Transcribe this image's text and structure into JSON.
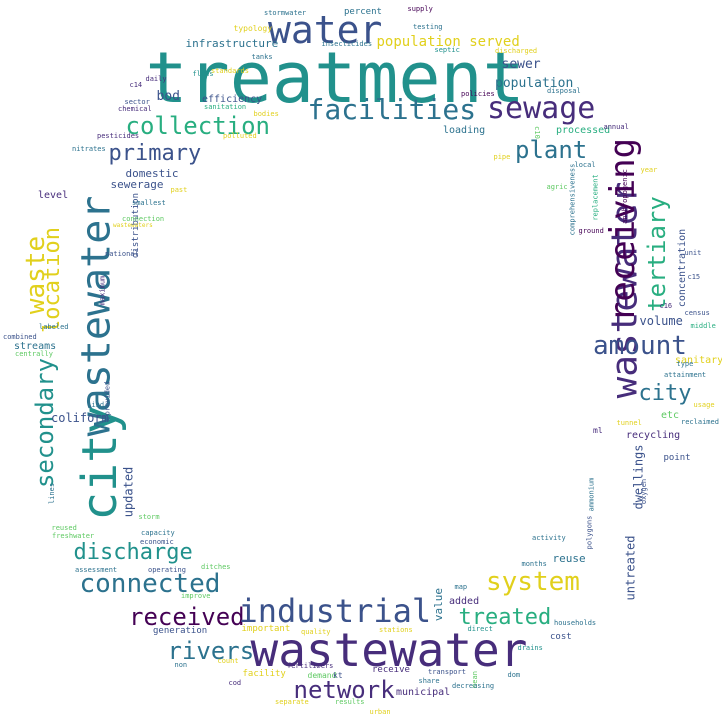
{
  "palette": {
    "purple": "#440154",
    "indigo": "#472d7b",
    "blue": "#3b528b",
    "steel": "#2c728e",
    "teal": "#21918c",
    "green": "#28ae80",
    "lime": "#5ec962",
    "yellowgreen": "#addc30",
    "yellow": "#e1d01c"
  },
  "words": [
    {
      "text": "treatment",
      "color": "teal"
    },
    {
      "text": "water",
      "color": "blue"
    },
    {
      "text": "sewage",
      "color": "indigo"
    },
    {
      "text": "facilities",
      "color": "steel"
    },
    {
      "text": "collection",
      "color": "green"
    },
    {
      "text": "primary",
      "color": "blue"
    },
    {
      "text": "plant",
      "color": "steel"
    },
    {
      "text": "wastewater",
      "color": "indigo"
    },
    {
      "text": "receiving",
      "color": "purple"
    },
    {
      "text": "tertiary",
      "color": "green"
    },
    {
      "text": "amount",
      "color": "blue"
    },
    {
      "text": "city",
      "color": "steel"
    },
    {
      "text": "city",
      "color": "teal"
    },
    {
      "text": "wastewater",
      "color": "steel"
    },
    {
      "text": "waste",
      "color": "yellow"
    },
    {
      "text": "location",
      "color": "yellow"
    },
    {
      "text": "secondary",
      "color": "teal"
    },
    {
      "text": "discharge",
      "color": "teal"
    },
    {
      "text": "connected",
      "color": "steel"
    },
    {
      "text": "system",
      "color": "yellow"
    },
    {
      "text": "received",
      "color": "purple"
    },
    {
      "text": "industrial",
      "color": "blue"
    },
    {
      "text": "treated",
      "color": "green"
    },
    {
      "text": "rivers",
      "color": "steel"
    },
    {
      "text": "wastewater",
      "color": "indigo"
    },
    {
      "text": "network",
      "color": "indigo"
    },
    {
      "text": "population served",
      "color": "yellow"
    },
    {
      "text": "sewer",
      "color": "blue"
    },
    {
      "text": "population",
      "color": "steel"
    },
    {
      "text": "bod",
      "color": "blue"
    },
    {
      "text": "efficiency",
      "color": "blue"
    },
    {
      "text": "infrastructure",
      "color": "steel"
    },
    {
      "text": "domestic",
      "color": "blue"
    },
    {
      "text": "sewerage",
      "color": "blue"
    },
    {
      "text": "level",
      "color": "indigo"
    },
    {
      "text": "volume",
      "color": "blue"
    },
    {
      "text": "coliform",
      "color": "blue"
    },
    {
      "text": "streams",
      "color": "steel"
    },
    {
      "text": "updated",
      "color": "blue"
    },
    {
      "text": "dwellings",
      "color": "blue"
    },
    {
      "text": "untreated",
      "color": "blue"
    },
    {
      "text": "reuse",
      "color": "steel"
    },
    {
      "text": "recycling",
      "color": "indigo"
    },
    {
      "text": "point",
      "color": "blue"
    },
    {
      "text": "concentration",
      "color": "blue"
    },
    {
      "text": "distribution",
      "color": "blue"
    },
    {
      "text": "value",
      "color": "steel"
    },
    {
      "text": "added",
      "color": "indigo"
    },
    {
      "text": "municipal",
      "color": "indigo"
    },
    {
      "text": "receive",
      "color": "indigo"
    },
    {
      "text": "percent",
      "color": "steel"
    },
    {
      "text": "supply",
      "color": "purple"
    },
    {
      "text": "typology",
      "color": "yellow"
    },
    {
      "text": "stormwater",
      "color": "steel"
    },
    {
      "text": "testing",
      "color": "steel"
    },
    {
      "text": "septic",
      "color": "teal"
    },
    {
      "text": "insecticides",
      "color": "steel"
    },
    {
      "text": "discharged",
      "color": "yellow"
    },
    {
      "text": "tanks",
      "color": "steel"
    },
    {
      "text": "policies",
      "color": "purple"
    },
    {
      "text": "disposal",
      "color": "steel"
    },
    {
      "text": "c14",
      "color": "indigo"
    },
    {
      "text": "daily",
      "color": "indigo"
    },
    {
      "text": "flows",
      "color": "teal"
    },
    {
      "text": "sector",
      "color": "blue"
    },
    {
      "text": "chemical",
      "color": "indigo"
    },
    {
      "text": "standards",
      "color": "yellow"
    },
    {
      "text": "sanitation",
      "color": "green"
    },
    {
      "text": "bodies",
      "color": "yellow"
    },
    {
      "text": "polluted",
      "color": "yellow"
    },
    {
      "text": "loading",
      "color": "steel"
    },
    {
      "text": "processed",
      "color": "green"
    },
    {
      "text": "annual",
      "color": "indigo"
    },
    {
      "text": "c10",
      "color": "lime"
    },
    {
      "text": "pesticides",
      "color": "indigo"
    },
    {
      "text": "nitrates",
      "color": "steel"
    },
    {
      "text": "pipe",
      "color": "yellow"
    },
    {
      "text": "local",
      "color": "steel"
    },
    {
      "text": "comprehensiveness",
      "color": "steel"
    },
    {
      "text": "agric",
      "color": "lime"
    },
    {
      "text": "year",
      "color": "yellow"
    },
    {
      "text": "past",
      "color": "yellow"
    },
    {
      "text": "smallest",
      "color": "steel"
    },
    {
      "text": "connection",
      "color": "lime"
    },
    {
      "text": "wastewaters",
      "color": "yellow"
    },
    {
      "text": "replacement",
      "color": "green"
    },
    {
      "text": "anthropogenic",
      "color": "purple"
    },
    {
      "text": "ground",
      "color": "purple"
    },
    {
      "text": "unit",
      "color": "blue"
    },
    {
      "text": "national",
      "color": "blue"
    },
    {
      "text": "maximum",
      "color": "indigo"
    },
    {
      "text": "c15",
      "color": "blue"
    },
    {
      "text": "c16",
      "color": "indigo"
    },
    {
      "text": "census",
      "color": "blue"
    },
    {
      "text": "middle",
      "color": "green"
    },
    {
      "text": "combined",
      "color": "blue"
    },
    {
      "text": "labeled",
      "color": "steel"
    },
    {
      "text": "centrally",
      "color": "lime"
    },
    {
      "text": "sanitary",
      "color": "yellow"
    },
    {
      "text": "type",
      "color": "steel"
    },
    {
      "text": "attainment",
      "color": "steel"
    },
    {
      "text": "usage",
      "color": "yellow"
    },
    {
      "text": "etc",
      "color": "lime"
    },
    {
      "text": "reclaimed",
      "color": "steel"
    },
    {
      "text": "ind",
      "color": "steel"
    },
    {
      "text": "provided",
      "color": "blue"
    },
    {
      "text": "ml",
      "color": "indigo"
    },
    {
      "text": "tunnel",
      "color": "yellow"
    },
    {
      "text": "lines",
      "color": "steel"
    },
    {
      "text": "storm",
      "color": "lime"
    },
    {
      "text": "reused",
      "color": "lime"
    },
    {
      "text": "freshwater",
      "color": "lime"
    },
    {
      "text": "capacity",
      "color": "steel"
    },
    {
      "text": "economic",
      "color": "blue"
    },
    {
      "text": "ammonium",
      "color": "steel"
    },
    {
      "text": "polygons",
      "color": "blue"
    },
    {
      "text": "oxygen",
      "color": "blue"
    },
    {
      "text": "activity",
      "color": "steel"
    },
    {
      "text": "months",
      "color": "steel"
    },
    {
      "text": "assessment",
      "color": "steel"
    },
    {
      "text": "operating",
      "color": "blue"
    },
    {
      "text": "ditches",
      "color": "lime"
    },
    {
      "text": "improve",
      "color": "lime"
    },
    {
      "text": "map",
      "color": "steel"
    },
    {
      "text": "generation",
      "color": "blue"
    },
    {
      "text": "important",
      "color": "yellow"
    },
    {
      "text": "quality",
      "color": "yellow"
    },
    {
      "text": "stations",
      "color": "yellow"
    },
    {
      "text": "direct",
      "color": "teal"
    },
    {
      "text": "households",
      "color": "steel"
    },
    {
      "text": "cost",
      "color": "blue"
    },
    {
      "text": "drains",
      "color": "teal"
    },
    {
      "text": "transport",
      "color": "blue"
    },
    {
      "text": "fertilizers",
      "color": "indigo"
    },
    {
      "text": "demand",
      "color": "lime"
    },
    {
      "text": "kt",
      "color": "blue"
    },
    {
      "text": "share",
      "color": "steel"
    },
    {
      "text": "dom",
      "color": "steel"
    },
    {
      "text": "mean",
      "color": "lime"
    },
    {
      "text": "count",
      "color": "yellow"
    },
    {
      "text": "facility",
      "color": "yellow"
    },
    {
      "text": "cod",
      "color": "indigo"
    },
    {
      "text": "decreasing",
      "color": "steel"
    },
    {
      "text": "separate",
      "color": "yellow"
    },
    {
      "text": "results",
      "color": "lime"
    },
    {
      "text": "urban",
      "color": "yellow"
    },
    {
      "text": "non",
      "color": "steel"
    }
  ]
}
